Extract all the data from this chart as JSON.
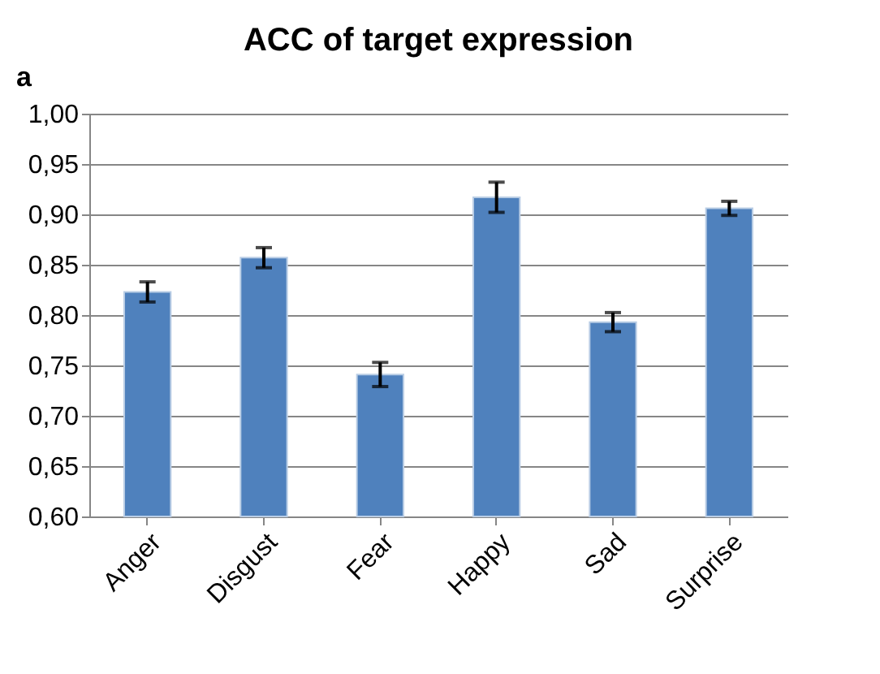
{
  "chart_data": {
    "type": "bar",
    "title": "ACC of target expression",
    "annotations": [
      "a"
    ],
    "categories": [
      "Anger",
      "Disgust",
      "Fear",
      "Happy",
      "Sad",
      "Surprise"
    ],
    "values": [
      0.823,
      0.857,
      0.741,
      0.917,
      0.793,
      0.906
    ],
    "errors": [
      0.01,
      0.01,
      0.012,
      0.015,
      0.0095,
      0.007
    ],
    "color": "#4f81bd",
    "ylim": [
      0.6,
      1.0
    ],
    "yticks": [
      {
        "value": 0.6,
        "label": "0,60"
      },
      {
        "value": 0.65,
        "label": "0,65"
      },
      {
        "value": 0.7,
        "label": "0,70"
      },
      {
        "value": 0.75,
        "label": "0,75"
      },
      {
        "value": 0.8,
        "label": "0,80"
      },
      {
        "value": 0.85,
        "label": "0,85"
      },
      {
        "value": 0.9,
        "label": "0,90"
      },
      {
        "value": 0.95,
        "label": "0,95"
      },
      {
        "value": 1.0,
        "label": "1,00"
      }
    ],
    "grid": "y"
  }
}
